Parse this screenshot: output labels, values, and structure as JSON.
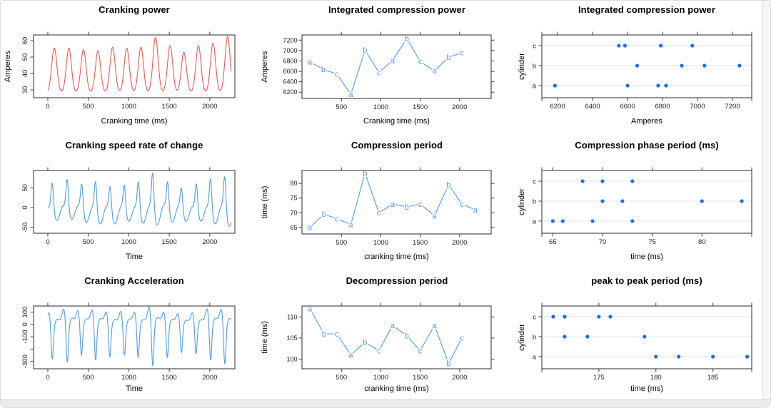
{
  "window": {
    "background": "#ffffff",
    "frame_border": "#dcdcdc",
    "bottom_bar": "#ebebeb",
    "scrollbar_track": "#f6f6f6"
  },
  "palette": {
    "red_line": "#f85252",
    "blue_line": "#4d9af0",
    "blue_dot": "#1b6fe8",
    "grid_line": "#e6e6e6",
    "axis": "#3c3c3c",
    "tick_label": "#1f1f1f",
    "text": "#000000"
  },
  "chart_data": [
    {
      "name": "cranking-power",
      "type": "wave",
      "wave_form": "power",
      "title": "Cranking power",
      "xlabel": "Cranking time (ms)",
      "ylabel": "Amperes",
      "color_key": "red_line",
      "grid": false,
      "legend": "none",
      "xlim": [
        -176,
        2310
      ],
      "ylim": [
        25.2,
        63.5
      ],
      "xticks": [
        0,
        500,
        1000,
        1500,
        2000
      ],
      "yticks": [
        30,
        40,
        50,
        60
      ],
      "y_style": "rotated",
      "box": {
        "l": 46,
        "r": 328,
        "t": 48,
        "b": 136
      },
      "h": 190,
      "wave": {
        "baseline": 28.3,
        "sigma": 32,
        "x_end": 2265,
        "peaks": [
          [
            80,
            55.5
          ],
          [
            260,
            55.5
          ],
          [
            440,
            54.5
          ],
          [
            620,
            54
          ],
          [
            800,
            56
          ],
          [
            975,
            55.5
          ],
          [
            1150,
            56
          ],
          [
            1330,
            62
          ],
          [
            1510,
            57
          ],
          [
            1680,
            53
          ],
          [
            1860,
            57
          ],
          [
            2040,
            58.5
          ],
          [
            2220,
            62.5
          ]
        ]
      }
    },
    {
      "name": "integrated-compression-power-line",
      "type": "labeled-line",
      "title": "Integrated compression power",
      "xlabel": "Cranking time (ms)",
      "ylabel": "Amperes",
      "color_key": "blue_line",
      "grid": false,
      "legend": "none",
      "xlim": [
        0,
        2400
      ],
      "ylim": [
        6080,
        7300
      ],
      "xticks": [
        500,
        1000,
        1500,
        2000
      ],
      "yticks": [
        6200,
        6400,
        6600,
        6800,
        7000,
        7200
      ],
      "y_style": "horizontal",
      "right_ticks": true,
      "box": {
        "l": 62,
        "r": 327,
        "t": 48,
        "b": 137
      },
      "h": 190,
      "points": {
        "x": [
          100,
          270,
          440,
          620,
          800,
          975,
          1150,
          1330,
          1500,
          1680,
          1860,
          2030
        ],
        "y": [
          6780,
          6640,
          6550,
          6160,
          7010,
          6580,
          6810,
          7230,
          6790,
          6610,
          6870,
          6960
        ],
        "labels": [
          "a",
          "b",
          "c",
          "a",
          "b",
          "c",
          "a",
          "b",
          "c",
          "a",
          "b",
          "c"
        ]
      }
    },
    {
      "name": "integrated-compression-power-strip",
      "type": "strip",
      "title": "Integrated compression power",
      "xlabel": "Amperes",
      "ylabel": "cylinder",
      "color_key": "blue_dot",
      "grid": true,
      "legend": "none",
      "xlim": [
        6110,
        7310
      ],
      "xticks": [
        6200,
        6400,
        6600,
        6800,
        7000,
        7200
      ],
      "rows": [
        {
          "cat": "a",
          "y": 119,
          "values": [
            6185,
            6600,
            6775,
            6820
          ]
        },
        {
          "cat": "b",
          "y": 91,
          "values": [
            6655,
            6910,
            7040,
            7240
          ]
        },
        {
          "cat": "c",
          "y": 63,
          "values": [
            6550,
            6585,
            6790,
            6970
          ]
        }
      ],
      "box": {
        "l": 38,
        "r": 332,
        "t": 48,
        "b": 136
      },
      "h": 190,
      "end_ticks": true
    },
    {
      "name": "cranking-speed-rate-of-change",
      "type": "wave",
      "wave_form": "rate",
      "title": "Cranking speed rate of change",
      "xlabel": "Time",
      "ylabel": "",
      "color_key": "blue_line",
      "grid": false,
      "legend": "none",
      "xlim": [
        -176,
        2310
      ],
      "ylim": [
        -65,
        94
      ],
      "xticks": [
        0,
        500,
        1000,
        1500,
        2000
      ],
      "yticks": [
        -50,
        0,
        50
      ],
      "y_style": "rotated",
      "box": {
        "l": 46,
        "r": 328,
        "t": 48,
        "b": 136
      },
      "h": 190,
      "wave": {
        "x_end": 2265,
        "peaks": [
          [
            55,
            62,
            33
          ],
          [
            240,
            70,
            30
          ],
          [
            420,
            57,
            38
          ],
          [
            590,
            63,
            42
          ],
          [
            770,
            51,
            42
          ],
          [
            945,
            55,
            35
          ],
          [
            1120,
            63,
            40
          ],
          [
            1295,
            85,
            45
          ],
          [
            1480,
            63,
            38
          ],
          [
            1650,
            46,
            35
          ],
          [
            1835,
            59,
            35
          ],
          [
            2010,
            70,
            42
          ],
          [
            2185,
            75,
            48
          ]
        ]
      }
    },
    {
      "name": "compression-period",
      "type": "labeled-line",
      "title": "Compression period",
      "xlabel": "cranking time (ms)",
      "ylabel": "time (ms)",
      "color_key": "blue_line",
      "grid": false,
      "legend": "none",
      "xlim": [
        0,
        2400
      ],
      "ylim": [
        62.8,
        84.4
      ],
      "xticks": [
        500,
        1000,
        1500,
        2000
      ],
      "yticks": [
        65,
        70,
        75,
        80
      ],
      "y_style": "horizontal",
      "right_ticks": true,
      "box": {
        "l": 62,
        "r": 327,
        "t": 48,
        "b": 137
      },
      "h": 190,
      "points": {
        "x": [
          100,
          280,
          440,
          620,
          800,
          975,
          1150,
          1330,
          1500,
          1680,
          1860,
          2030,
          2200
        ],
        "y": [
          65,
          69.5,
          68,
          66,
          83.5,
          70,
          73,
          72,
          73,
          69,
          79.5,
          73,
          71
        ],
        "labels": [
          "a",
          "b",
          "c",
          "a",
          "b",
          "c",
          "a",
          "b",
          "c",
          "a",
          "b",
          "c",
          "a"
        ]
      }
    },
    {
      "name": "compression-phase-period",
      "type": "strip",
      "title": "Compression phase period (ms)",
      "xlabel": "time (ms)",
      "ylabel": "cylinder",
      "color_key": "blue_dot",
      "grid": true,
      "legend": "none",
      "xlim": [
        63.9,
        85.0
      ],
      "xticks": [
        65,
        70,
        75,
        80
      ],
      "rows": [
        {
          "cat": "a",
          "y": 119,
          "values": [
            65,
            66,
            69,
            73
          ]
        },
        {
          "cat": "b",
          "y": 91,
          "values": [
            70,
            72,
            80,
            84
          ]
        },
        {
          "cat": "c",
          "y": 63,
          "values": [
            68,
            70,
            73
          ]
        }
      ],
      "box": {
        "l": 38,
        "r": 332,
        "t": 48,
        "b": 136
      },
      "h": 190,
      "end_ticks": true
    },
    {
      "name": "cranking-acceleration",
      "type": "wave",
      "wave_form": "accel",
      "title": "Cranking Acceleration",
      "xlabel": "Time",
      "ylabel": "",
      "color_key": "blue_line",
      "grid": false,
      "legend": "none",
      "xlim": [
        -176,
        2310
      ],
      "ylim": [
        -360,
        150
      ],
      "xticks": [
        0,
        500,
        1000,
        1500,
        2000
      ],
      "yticks": [
        100,
        0,
        -100,
        -200,
        -300
      ],
      "ytick_labels": [
        "100",
        "0",
        "-100",
        "",
        "-300"
      ],
      "y_style": "rotated",
      "box": {
        "l": 46,
        "r": 328,
        "t": 48,
        "b": 136
      },
      "h": 180,
      "wave": {
        "x_end": 2265,
        "peaks": [
          [
            55,
            95,
            280
          ],
          [
            240,
            115,
            305
          ],
          [
            415,
            100,
            250
          ],
          [
            590,
            105,
            290
          ],
          [
            765,
            90,
            265
          ],
          [
            945,
            95,
            250
          ],
          [
            1115,
            85,
            270
          ],
          [
            1295,
            130,
            335
          ],
          [
            1475,
            90,
            270
          ],
          [
            1650,
            75,
            230
          ],
          [
            1830,
            85,
            240
          ],
          [
            2010,
            115,
            290
          ],
          [
            2185,
            110,
            320
          ]
        ]
      }
    },
    {
      "name": "decompression-period",
      "type": "labeled-line",
      "title": "Decompression period",
      "xlabel": "cranking time (ms)",
      "ylabel": "time (ms)",
      "color_key": "blue_line",
      "grid": false,
      "legend": "none",
      "xlim": [
        0,
        2400
      ],
      "ylim": [
        97.7,
        112.6
      ],
      "xticks": [
        500,
        1000,
        1500,
        2000
      ],
      "yticks": [
        100,
        105,
        110
      ],
      "y_style": "horizontal",
      "right_ticks": true,
      "box": {
        "l": 62,
        "r": 327,
        "t": 48,
        "b": 136
      },
      "h": 180,
      "points": {
        "x": [
          100,
          280,
          440,
          620,
          800,
          975,
          1150,
          1330,
          1500,
          1680,
          1860,
          2030
        ],
        "y": [
          112,
          106,
          106,
          101,
          104,
          102,
          108,
          105.5,
          102,
          108,
          99,
          105
        ],
        "labels": [
          "a",
          "b",
          "c",
          "a",
          "b",
          "c",
          "a",
          "b",
          "c",
          "a",
          "b",
          "c"
        ]
      }
    },
    {
      "name": "peak-to-peak-period",
      "type": "strip",
      "title": "peak to peak period (ms)",
      "xlabel": "time (ms)",
      "ylabel": "cylinder",
      "color_key": "blue_dot",
      "grid": true,
      "legend": "none",
      "xlim": [
        170,
        188.4
      ],
      "xticks": [
        175,
        180,
        185
      ],
      "rows": [
        {
          "cat": "a",
          "y": 119,
          "values": [
            180,
            182,
            185,
            188
          ]
        },
        {
          "cat": "b",
          "y": 91,
          "values": [
            172,
            174,
            179
          ]
        },
        {
          "cat": "c",
          "y": 63,
          "values": [
            171,
            172,
            175,
            176
          ]
        }
      ],
      "box": {
        "l": 38,
        "r": 332,
        "t": 48,
        "b": 136
      },
      "h": 180,
      "end_ticks": true
    }
  ]
}
